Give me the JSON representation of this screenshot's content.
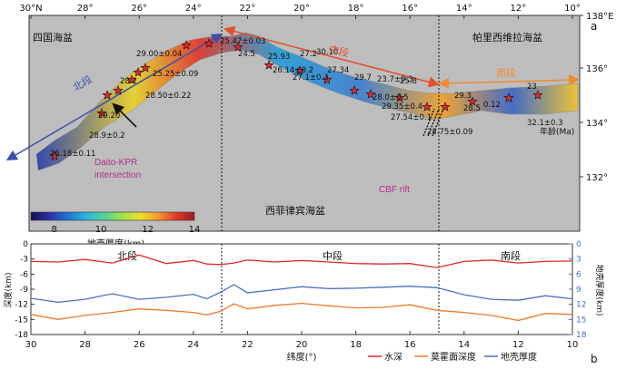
{
  "panel_a": {
    "panel_label": "a",
    "top_tick_labels": [
      "30°N",
      "28°",
      "26°",
      "24°",
      "22°",
      "20°",
      "18°",
      "16°",
      "14°",
      "12°",
      "10°"
    ],
    "right_tick_labels": [
      "138°E",
      "136°",
      "134°",
      "132°"
    ],
    "basin_labels": {
      "shikoku": "四国海盆",
      "west_philippine": "西菲律宾海盆",
      "parece_vela": "帕里西维拉海盆"
    },
    "segment_labels": {
      "north": "北段",
      "middle": "中段",
      "south": "南段"
    },
    "ages": [
      "26.18±0.11",
      "29.00±0.04",
      "25.47±0.03",
      "28.9±0.2",
      "25.25±0.09",
      "28.2",
      "29.20",
      "28.50±0.22",
      "24.5",
      "25.93",
      "26.14±0.2",
      "27.1±0.3",
      "27.2",
      "30.10",
      "27.34",
      "29.7",
      "28.0±0.5",
      "29.35±0.4",
      "27.54±0.1",
      "28.75±0.09",
      "23.7±0.3",
      "25.8",
      "29.3",
      "28.5",
      "0.12",
      "32.1±0.3",
      "23"
    ],
    "annotations": {
      "daito": "Daito-KPR\nintersection",
      "cbf": "CBF rift",
      "age_unit": "年龄(Ma)"
    },
    "colorbar": {
      "ticks": [
        "8",
        "10",
        "12",
        "14"
      ],
      "label": "地壳厚度(km)",
      "min": 7,
      "max": 14,
      "colors": [
        "#1a0a4a",
        "#2d2ea5",
        "#1f6fd6",
        "#27b5d9",
        "#4ed1a0",
        "#9ee04a",
        "#e8e027",
        "#f59a2c",
        "#e0382a",
        "#9e1a1e"
      ]
    },
    "colors": {
      "background": "#bdbdbd",
      "north_arrow": "#3b4fae",
      "middle_arrow": "#e3502b",
      "south_arrow": "#f28a2e"
    }
  },
  "panel_b": {
    "panel_label": "b",
    "segment_labels": {
      "north": "北段",
      "middle": "中段",
      "south": "南段"
    },
    "legend": {
      "water": "水深",
      "moho": "莫霍面深度",
      "crust": "地壳厚度"
    },
    "colors": {
      "water": "#e02a2a",
      "moho": "#f07a2a",
      "crust": "#4a6fc0",
      "right_axis": "#4a6fc0"
    }
  },
  "chart_data": {
    "type": "line",
    "xlabel": "纬度(°)",
    "ylabel": "深度(km)",
    "y2label": "地壳厚度(km)",
    "xlim": [
      30,
      10
    ],
    "ylim": [
      -18,
      0
    ],
    "y2lim": [
      18,
      0
    ],
    "x_ticks": [
      "30",
      "28",
      "26",
      "24",
      "22",
      "20",
      "18",
      "16",
      "14",
      "12",
      "10"
    ],
    "y_ticks": [
      "0",
      "-3",
      "-6",
      "-9",
      "-12",
      "-15",
      "-18"
    ],
    "y2_ticks": [
      "0",
      "3",
      "6",
      "9",
      "12",
      "15",
      "18"
    ],
    "boundaries": [
      23.0,
      14.9
    ],
    "x": [
      30,
      29,
      28,
      27,
      26,
      25,
      24,
      23.5,
      23,
      22.5,
      22,
      21,
      20,
      19,
      18,
      17,
      16,
      15,
      14,
      13,
      12,
      11,
      10
    ],
    "series": [
      {
        "name": "水深",
        "axis": "left",
        "values": [
          -3.5,
          -3.6,
          -3.1,
          -3.8,
          -2.2,
          -3.9,
          -3.3,
          -4.0,
          -4.1,
          -3.8,
          -3.2,
          -3.6,
          -3.3,
          -3.6,
          -3.9,
          -4.0,
          -3.9,
          -4.7,
          -3.5,
          -3.2,
          -3.8,
          -3.5,
          -3.4
        ]
      },
      {
        "name": "莫霍面深度",
        "axis": "left",
        "values": [
          -14.0,
          -15.0,
          -14.2,
          -13.6,
          -12.9,
          -13.2,
          -13.6,
          -14.1,
          -13.4,
          -11.9,
          -12.9,
          -12.2,
          -11.8,
          -12.3,
          -12.7,
          -12.6,
          -12.1,
          -13.2,
          -13.6,
          -14.2,
          -15.2,
          -13.8,
          -14.0
        ]
      },
      {
        "name": "地壳厚度",
        "axis": "right",
        "values": [
          10.8,
          11.6,
          11.0,
          9.9,
          11.0,
          10.6,
          10.0,
          10.9,
          9.6,
          8.1,
          9.7,
          9.1,
          8.5,
          8.9,
          8.8,
          8.6,
          8.4,
          8.7,
          10.1,
          11.0,
          11.2,
          10.3,
          10.9
        ]
      }
    ]
  }
}
